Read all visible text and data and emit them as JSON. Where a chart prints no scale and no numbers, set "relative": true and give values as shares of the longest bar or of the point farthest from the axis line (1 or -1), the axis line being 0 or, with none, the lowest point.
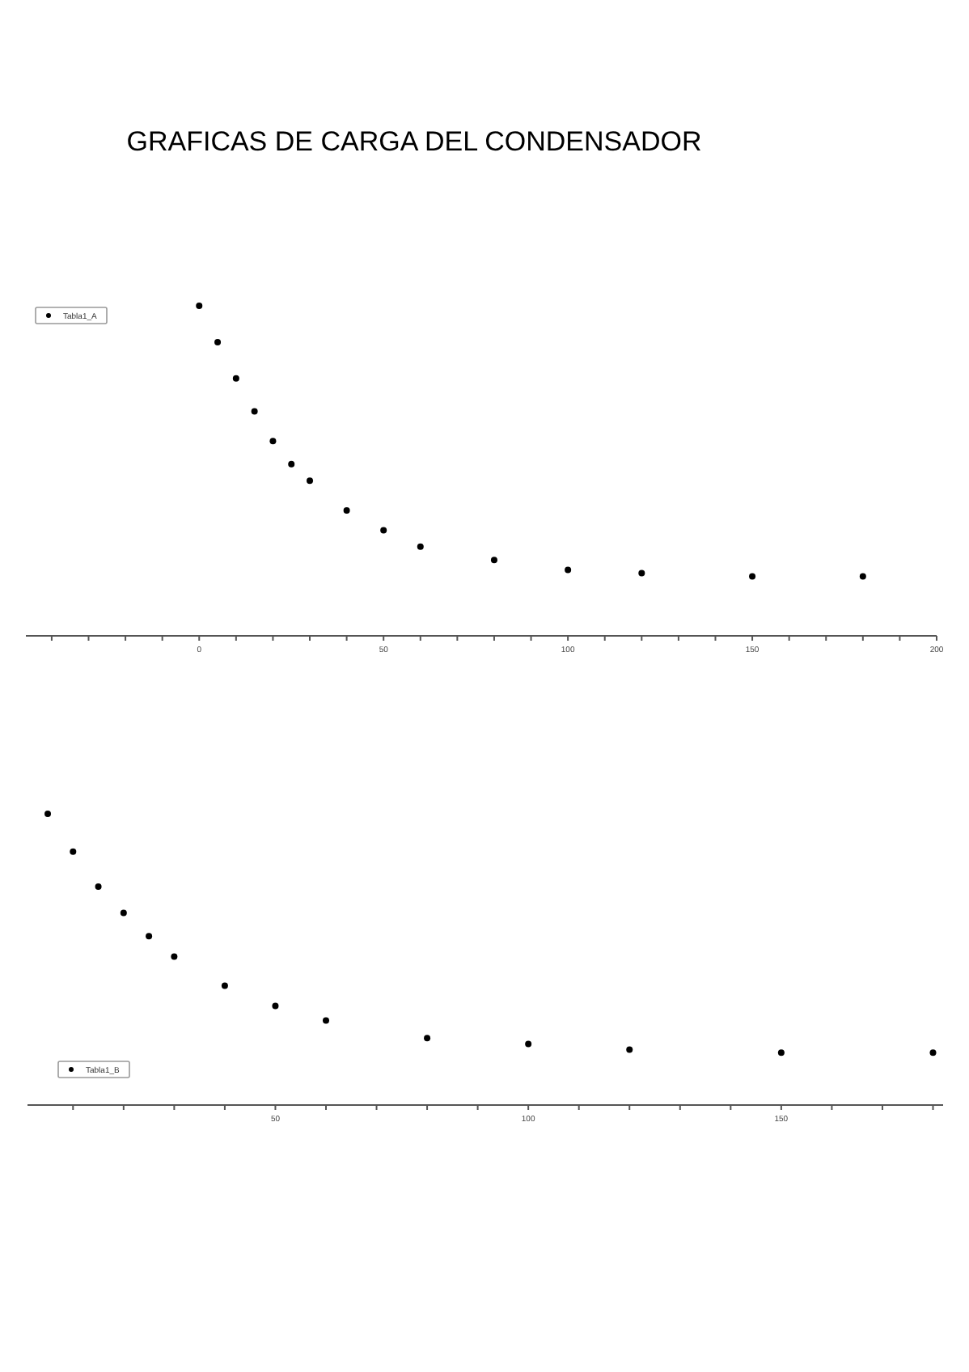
{
  "chart_data": [
    {
      "type": "scatter",
      "title": "GRAFICAS DE CARGA DEL CONDENSADOR",
      "relative": true,
      "marker": "circle",
      "legend": "top left",
      "x": [
        0,
        5,
        10,
        15,
        20,
        25,
        30,
        40,
        50,
        60,
        80,
        100,
        120,
        150,
        180
      ],
      "series": [
        {
          "name": "Tabla1_A",
          "color": "#000000",
          "values": [
            1,
            0.89,
            0.78,
            0.68,
            0.59,
            0.52,
            0.47,
            0.38,
            0.32,
            0.27,
            0.23,
            0.2,
            0.19,
            0.18,
            0.18
          ]
        }
      ],
      "xlim": [
        -47,
        200
      ],
      "xticks": [
        {
          "value": -40,
          "label": null
        },
        {
          "value": -30,
          "label": null
        },
        {
          "value": -20,
          "label": null
        },
        {
          "value": -10,
          "label": null
        },
        0,
        {
          "value": 10,
          "label": null
        },
        {
          "value": 20,
          "label": null
        },
        {
          "value": 30,
          "label": null
        },
        {
          "value": 40,
          "label": null
        },
        50,
        {
          "value": 60,
          "label": null
        },
        {
          "value": 70,
          "label": null
        },
        {
          "value": 80,
          "label": null
        },
        {
          "value": 90,
          "label": null
        },
        100,
        {
          "value": 110,
          "label": null
        },
        {
          "value": 120,
          "label": null
        },
        {
          "value": 130,
          "label": null
        },
        {
          "value": 140,
          "label": null
        },
        150,
        {
          "value": 160,
          "label": null
        },
        {
          "value": 170,
          "label": null
        },
        {
          "value": 180,
          "label": null
        },
        {
          "value": 190,
          "label": null
        },
        200
      ]
    },
    {
      "type": "scatter",
      "relative": true,
      "marker": "circle",
      "legend": "bottom left",
      "x": [
        5,
        10,
        15,
        20,
        25,
        30,
        40,
        50,
        60,
        80,
        100,
        120,
        150,
        180
      ],
      "series": [
        {
          "name": "Tabla1_B",
          "color": "#000000",
          "values": [
            1,
            0.87,
            0.75,
            0.66,
            0.58,
            0.51,
            0.41,
            0.34,
            0.29,
            0.23,
            0.21,
            0.19,
            0.18,
            0.18
          ]
        }
      ],
      "xlim": [
        1,
        182
      ],
      "xticks": [
        {
          "value": 10,
          "label": null
        },
        {
          "value": 20,
          "label": null
        },
        {
          "value": 30,
          "label": null
        },
        {
          "value": 40,
          "label": null
        },
        50,
        {
          "value": 60,
          "label": null
        },
        {
          "value": 70,
          "label": null
        },
        {
          "value": 80,
          "label": null
        },
        {
          "value": 90,
          "label": null
        },
        100,
        {
          "value": 110,
          "label": null
        },
        {
          "value": 120,
          "label": null
        },
        {
          "value": 130,
          "label": null
        },
        {
          "value": 140,
          "label": null
        },
        150,
        {
          "value": 160,
          "label": null
        },
        {
          "value": 170,
          "label": null
        },
        {
          "value": 180,
          "label": null
        }
      ]
    }
  ]
}
